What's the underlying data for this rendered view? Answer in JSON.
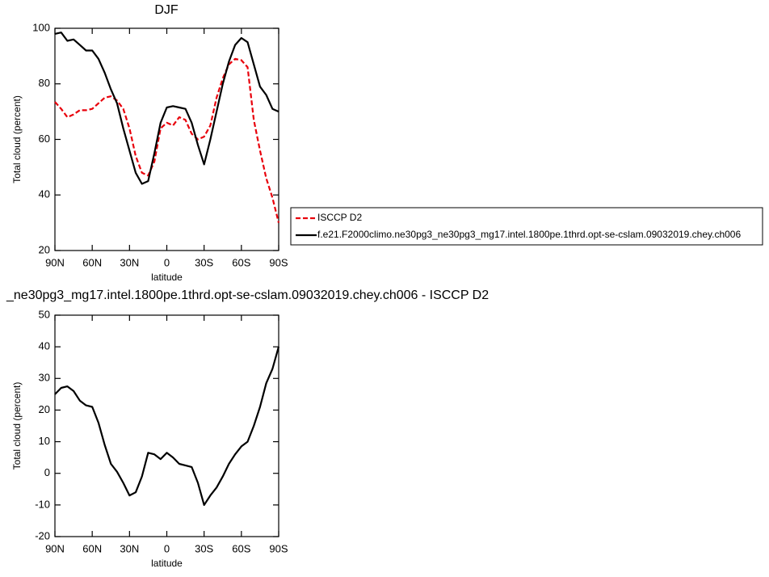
{
  "chart_data": [
    {
      "type": "line",
      "title": "DJF",
      "xlabel": "latitude",
      "ylabel": "Total cloud (percent)",
      "x": [
        90,
        85,
        80,
        75,
        70,
        65,
        60,
        55,
        50,
        45,
        40,
        35,
        30,
        25,
        20,
        15,
        10,
        5,
        0,
        -5,
        -10,
        -15,
        -20,
        -25,
        -30,
        -35,
        -40,
        -45,
        -50,
        -55,
        -60,
        -65,
        -70,
        -75,
        -80,
        -85,
        -90
      ],
      "xlim": [
        90,
        -90
      ],
      "xticks": [
        {
          "value": 90,
          "label": "90N"
        },
        {
          "value": 60,
          "label": "60N"
        },
        {
          "value": 30,
          "label": "30N"
        },
        0,
        {
          "value": -30,
          "label": "30S"
        },
        {
          "value": -60,
          "label": "60S"
        },
        {
          "value": -90,
          "label": "90S"
        }
      ],
      "ylim": [
        20,
        100
      ],
      "yticks": [
        20,
        40,
        60,
        80,
        100
      ],
      "legend": "right",
      "series": [
        {
          "name": "ISCCP D2",
          "color": "#e8000b",
          "line_style": "dashed",
          "values": [
            73.5,
            71,
            68,
            69,
            70.5,
            70.5,
            71,
            73,
            75,
            75.5,
            74,
            71,
            64,
            54,
            48,
            47,
            52,
            64,
            66,
            65,
            68,
            67,
            62,
            60,
            61,
            65,
            75,
            82,
            87,
            89,
            88.5,
            86,
            67,
            56,
            46,
            39,
            30
          ]
        },
        {
          "name": "f.e21.F2000climo.ne30pg3_ne30pg3_mg17.intel.1800pe.1thrd.opt-se-cslam.09032019.chey.ch006",
          "color": "#000000",
          "line_style": "solid",
          "values": [
            98,
            98.5,
            95.5,
            96,
            94,
            92,
            92,
            89,
            84,
            78,
            73,
            64,
            56,
            48,
            44,
            45,
            55,
            66,
            71.5,
            72,
            71.5,
            71,
            66,
            58,
            51,
            60,
            70,
            80,
            88,
            94,
            96.5,
            95,
            87,
            79,
            76,
            71,
            70
          ]
        }
      ]
    },
    {
      "type": "line",
      "title": "_ne30pg3_mg17.intel.1800pe.1thrd.opt-se-cslam.09032019.chey.ch006 - ISCCP D2",
      "xlabel": "latitude",
      "ylabel": "Total cloud (percent)",
      "x": [
        90,
        85,
        80,
        75,
        70,
        65,
        60,
        55,
        50,
        45,
        40,
        35,
        30,
        25,
        20,
        15,
        10,
        5,
        0,
        -5,
        -10,
        -15,
        -20,
        -25,
        -30,
        -35,
        -40,
        -45,
        -50,
        -55,
        -60,
        -65,
        -70,
        -75,
        -80,
        -85,
        -90
      ],
      "xlim": [
        90,
        -90
      ],
      "xticks": [
        {
          "value": 90,
          "label": "90N"
        },
        {
          "value": 60,
          "label": "60N"
        },
        {
          "value": 30,
          "label": "30N"
        },
        0,
        {
          "value": -30,
          "label": "30S"
        },
        {
          "value": -60,
          "label": "60S"
        },
        {
          "value": -90,
          "label": "90S"
        }
      ],
      "ylim": [
        -20,
        50
      ],
      "yticks": [
        -20,
        -10,
        0,
        10,
        20,
        30,
        40,
        50
      ],
      "series": [
        {
          "color": "#000000",
          "line_style": "solid",
          "values": [
            25,
            27,
            27.5,
            26,
            23,
            21.5,
            21,
            16,
            9,
            3,
            0.5,
            -3,
            -7,
            -6,
            -1,
            6.5,
            6,
            4.5,
            6.5,
            5,
            3,
            2.5,
            2,
            -3,
            -10,
            -7,
            -4.5,
            -1,
            3,
            6,
            8.5,
            10,
            15,
            21,
            28.5,
            33,
            40
          ]
        }
      ]
    }
  ]
}
